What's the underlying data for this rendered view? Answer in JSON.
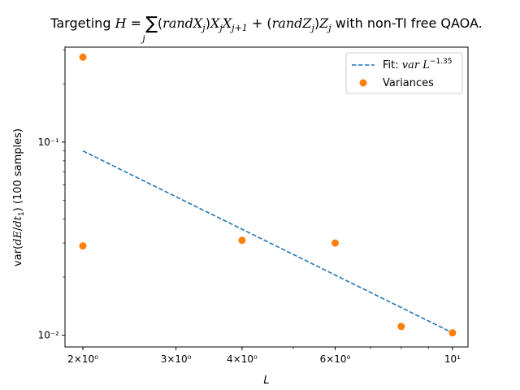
{
  "chart_data": {
    "type": "scatter",
    "title": "Targeting H = Σⱼ (randXⱼ)XⱼXⱼ₊₁ + (randZⱼ)Zⱼ with non-TI free QAOA.",
    "xlabel": "L",
    "ylabel": "var(dE/dt₁) (100 samples)",
    "xscale": "log",
    "yscale": "log",
    "xlim": [
      1.85,
      10.7
    ],
    "ylim": [
      0.0087,
      0.31
    ],
    "x_ticks": [
      {
        "value": 2,
        "label": "2×10⁰"
      },
      {
        "value": 3,
        "label": "3×10⁰"
      },
      {
        "value": 4,
        "label": "4×10⁰"
      },
      {
        "value": 6,
        "label": "6×10⁰"
      },
      {
        "value": 10,
        "label": "10¹"
      }
    ],
    "y_ticks": [
      {
        "value": 0.01,
        "label": "10⁻²"
      },
      {
        "value": 0.1,
        "label": "10⁻¹"
      }
    ],
    "series": [
      {
        "name": "Variances",
        "kind": "scatter",
        "color": "#ff7f0e",
        "x": [
          2,
          2,
          4,
          6,
          8,
          10
        ],
        "y": [
          0.275,
          0.029,
          0.031,
          0.03,
          0.0111,
          0.0103
        ]
      },
      {
        "name": "Fit: var L^-1.35",
        "kind": "line",
        "style": "dashed",
        "color": "#1f77b4",
        "x": [
          2,
          10
        ],
        "y": [
          0.09,
          0.0103
        ]
      }
    ],
    "legend": {
      "position": "top-right",
      "entries": [
        "Fit: var L^-1.35",
        "Variances"
      ]
    },
    "grid": false
  }
}
